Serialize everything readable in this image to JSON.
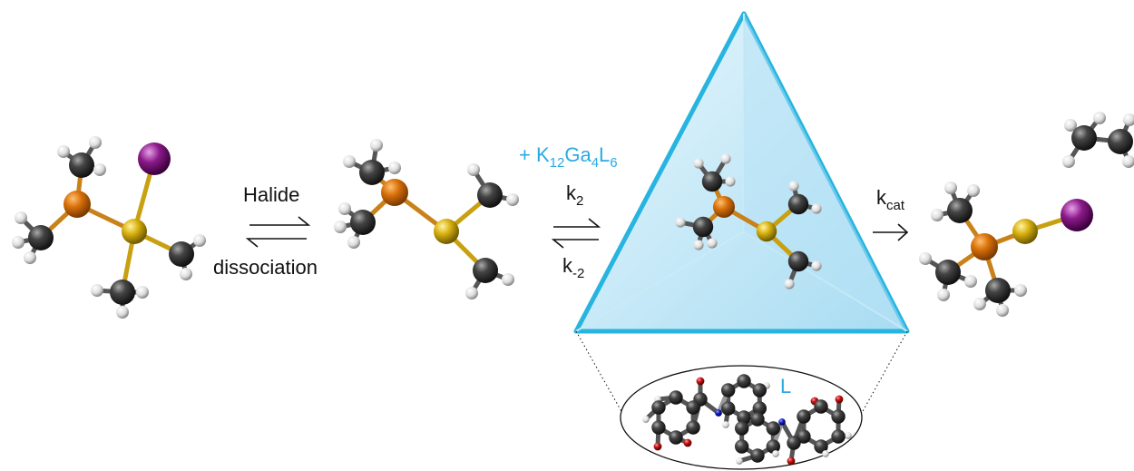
{
  "labels": {
    "halide": "Halide",
    "dissociation": "dissociation",
    "ligand": "L"
  },
  "host": {
    "parts": [
      "+ K",
      "12",
      "Ga",
      "4",
      "L",
      "6"
    ]
  },
  "rates": {
    "k2": {
      "base": "k",
      "sub": "2"
    },
    "k_minus2": {
      "base": "k",
      "sub": "-2"
    },
    "kcat": {
      "base": "k",
      "sub": "cat"
    }
  }
}
